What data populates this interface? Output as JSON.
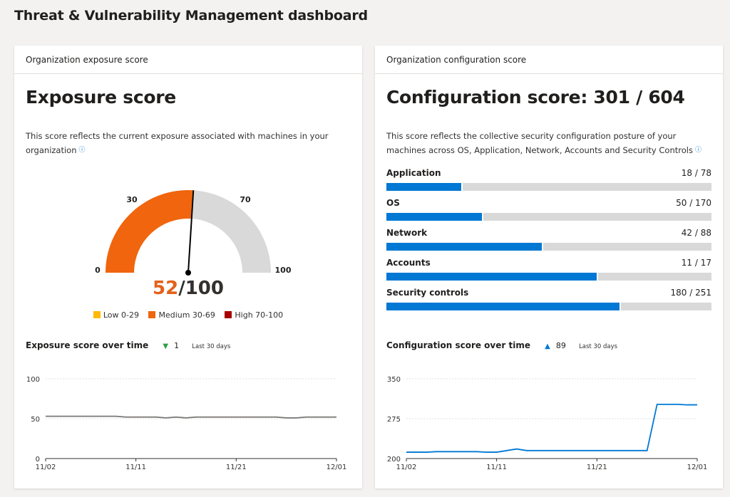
{
  "page_title": "Threat & Vulnerability Management dashboard",
  "exposure_card": {
    "header": "Organization exposure score",
    "title": "Exposure score",
    "description": "This score reflects the current exposure associated with machines in your organization",
    "info_icon": "info-icon",
    "gauge": {
      "value": "52",
      "max": "/100",
      "value_number": 52,
      "label_0": "0",
      "label_30": "30",
      "label_70": "70",
      "label_100": "100",
      "fill_color": "#f0650e",
      "track_color": "#d9d9d9"
    },
    "legend": [
      {
        "label": "Low 0-29",
        "color": "#ffb900"
      },
      {
        "label": "Medium 30-69",
        "color": "#f0650e"
      },
      {
        "label": "High 70-100",
        "color": "#a80000"
      }
    ],
    "over_time": {
      "title": "Exposure score over time",
      "change_icon": "triangle-down-icon",
      "change_value": "1",
      "period": "Last 30 days"
    }
  },
  "config_card": {
    "header": "Organization configuration score",
    "title": "Configuration score: 301 / 604",
    "description": "This score reflects the collective security configuration posture of your machines across OS, Application, Network, Accounts and Security Controls",
    "info_icon": "info-icon",
    "categories": [
      {
        "label": "Application",
        "value": "18 / 78",
        "score": 18,
        "max": 78
      },
      {
        "label": "OS",
        "value": "50 / 170",
        "score": 50,
        "max": 170
      },
      {
        "label": "Network",
        "value": "42 / 88",
        "score": 42,
        "max": 88
      },
      {
        "label": "Accounts",
        "value": "11 / 17",
        "score": 11,
        "max": 17
      },
      {
        "label": "Security controls",
        "value": "180 / 251",
        "score": 180,
        "max": 251
      }
    ],
    "bar_color": "#0078d4",
    "over_time": {
      "title": "Configuration score over time",
      "change_icon": "triangle-up-icon",
      "change_value": "89",
      "period": "Last 30 days"
    }
  },
  "chart_data": [
    {
      "type": "line",
      "title": "Exposure score over time",
      "xlabel": "",
      "ylabel": "",
      "x_ticks": [
        "11/02",
        "11/11",
        "11/21",
        "12/01"
      ],
      "y_ticks": [
        "0",
        "50",
        "100"
      ],
      "ylim": [
        0,
        100
      ],
      "x_range": [
        "11/02",
        "12/01"
      ],
      "series": [
        {
          "x": [
            "11/02",
            "11/03",
            "11/04",
            "11/05",
            "11/06",
            "11/07",
            "11/08",
            "11/09",
            "11/10",
            "11/11",
            "11/12",
            "11/13",
            "11/14",
            "11/15",
            "11/16",
            "11/17",
            "11/18",
            "11/19",
            "11/20",
            "11/21",
            "11/22",
            "11/23",
            "11/24",
            "11/25",
            "11/26",
            "11/27",
            "11/28",
            "11/29",
            "11/30",
            "12/01"
          ],
          "values": [
            53,
            53,
            53,
            53,
            53,
            53,
            53,
            53,
            52,
            52,
            52,
            52,
            51,
            52,
            51,
            52,
            52,
            52,
            52,
            52,
            52,
            52,
            52,
            52,
            51,
            51,
            52,
            52,
            52,
            52
          ]
        }
      ],
      "color": "#797775",
      "grid": true
    },
    {
      "type": "line",
      "title": "Configuration score over time",
      "xlabel": "",
      "ylabel": "",
      "x_ticks": [
        "11/02",
        "11/11",
        "11/21",
        "12/01"
      ],
      "y_ticks": [
        "200",
        "275",
        "350"
      ],
      "ylim": [
        200,
        350
      ],
      "x_range": [
        "11/02",
        "12/01"
      ],
      "series": [
        {
          "x": [
            "11/02",
            "11/03",
            "11/04",
            "11/05",
            "11/06",
            "11/07",
            "11/08",
            "11/09",
            "11/10",
            "11/11",
            "11/12",
            "11/13",
            "11/14",
            "11/15",
            "11/16",
            "11/17",
            "11/18",
            "11/19",
            "11/20",
            "11/21",
            "11/22",
            "11/23",
            "11/24",
            "11/25",
            "11/26",
            "11/27",
            "11/28",
            "11/29",
            "11/30",
            "12/01"
          ],
          "values": [
            212,
            212,
            212,
            213,
            213,
            213,
            213,
            213,
            212,
            212,
            215,
            218,
            215,
            215,
            215,
            215,
            215,
            215,
            215,
            215,
            215,
            215,
            215,
            215,
            215,
            302,
            302,
            302,
            301,
            301
          ]
        }
      ],
      "color": "#0078d4",
      "grid": true
    }
  ]
}
